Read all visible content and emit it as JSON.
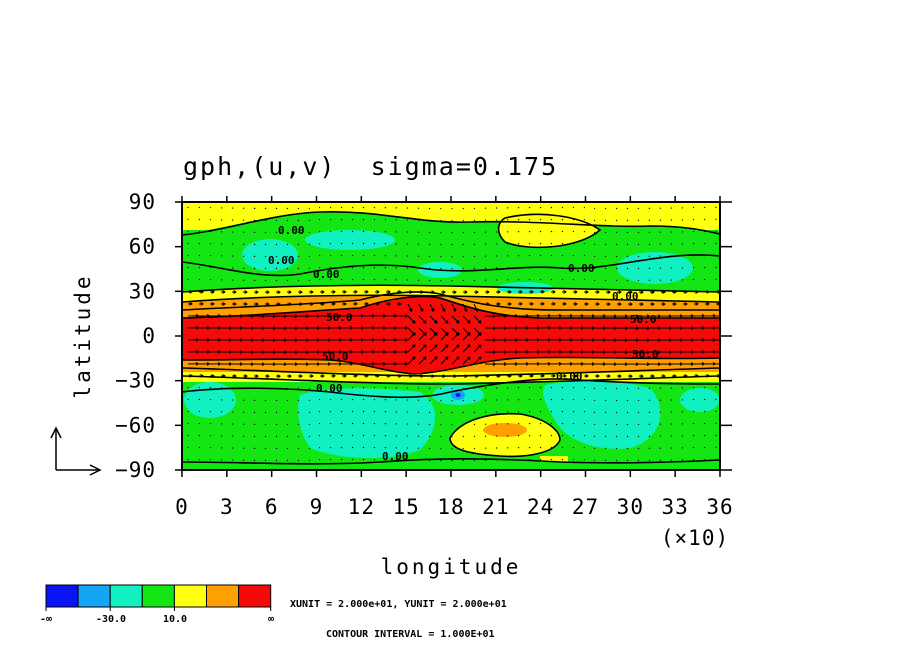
{
  "chart_data": {
    "type": "heatmap",
    "title": "gph,(u,v)  sigma=0.175",
    "xlabel": "longitude",
    "ylabel": "latitude",
    "x_multiplier": "(×10)",
    "xlim": [
      0,
      36
    ],
    "ylim": [
      -90,
      90
    ],
    "x_ticks": [
      "0",
      "3",
      "6",
      "9",
      "12",
      "15",
      "18",
      "21",
      "24",
      "27",
      "30",
      "33",
      "36"
    ],
    "y_ticks": [
      "90",
      "60",
      "30",
      "0",
      "-30",
      "-60",
      "-90"
    ],
    "colorbar": {
      "colors": [
        "#0a14f5",
        "#12a6f5",
        "#10f0c0",
        "#14e614",
        "#ffff10",
        "#ffa000",
        "#f50a0a"
      ],
      "labels": [
        "-∞",
        "-30.0",
        "10.0",
        "∞"
      ]
    },
    "contour_labels": [
      "0.00",
      "0.00",
      "0.00",
      "0.00",
      "0.00",
      "0.00",
      "0.00",
      "0.00",
      "50.0",
      "50.0",
      "50.0",
      "50.0"
    ],
    "notes": {
      "unit_line": "XUNIT = 2.000e+01, YUNIT = 2.000e+01",
      "interval_line": "CONTOUR INTERVAL = 1.000E+01"
    },
    "colors": {
      "red": "#f50a0a",
      "orange": "#ffa000",
      "yellow": "#ffff10",
      "green": "#14e614",
      "cyan": "#10f0c0",
      "lightblue": "#12a6f5",
      "blue": "#0a14f5"
    }
  }
}
